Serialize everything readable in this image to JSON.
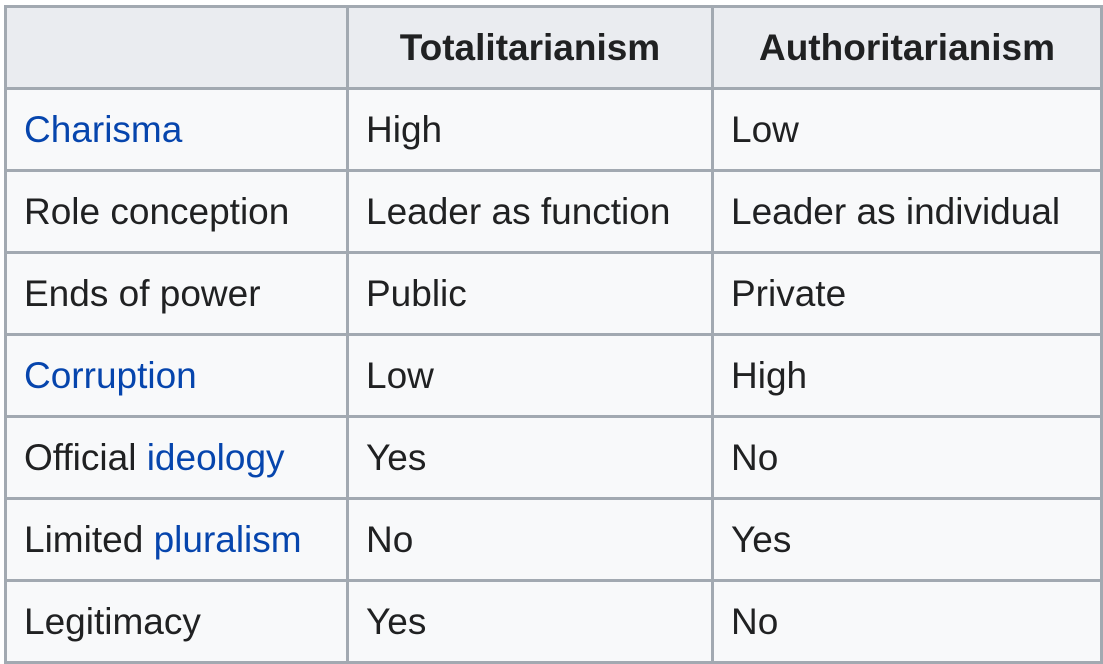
{
  "table": {
    "headers": [
      "",
      "Totalitarianism",
      "Authoritarianism"
    ],
    "rows": [
      {
        "label_prefix": "",
        "label_link": "Charisma",
        "totalitarianism": "High",
        "authoritarianism": "Low"
      },
      {
        "label_prefix": "Role conception",
        "label_link": "",
        "totalitarianism": "Leader as function",
        "authoritarianism": "Leader as individual"
      },
      {
        "label_prefix": "Ends of power",
        "label_link": "",
        "totalitarianism": "Public",
        "authoritarianism": "Private"
      },
      {
        "label_prefix": "",
        "label_link": "Corruption",
        "totalitarianism": "Low",
        "authoritarianism": "High"
      },
      {
        "label_prefix": "Official ",
        "label_link": "ideology",
        "totalitarianism": "Yes",
        "authoritarianism": "No"
      },
      {
        "label_prefix": "Limited ",
        "label_link": "pluralism",
        "totalitarianism": "No",
        "authoritarianism": "Yes"
      },
      {
        "label_prefix": "Legitimacy",
        "label_link": "",
        "totalitarianism": "Yes",
        "authoritarianism": "No"
      }
    ]
  },
  "colors": {
    "link": "#0645ad",
    "text": "#202122",
    "header_bg": "#eaecf0",
    "cell_bg": "#f8f9fa",
    "border": "#a2a9b1"
  }
}
